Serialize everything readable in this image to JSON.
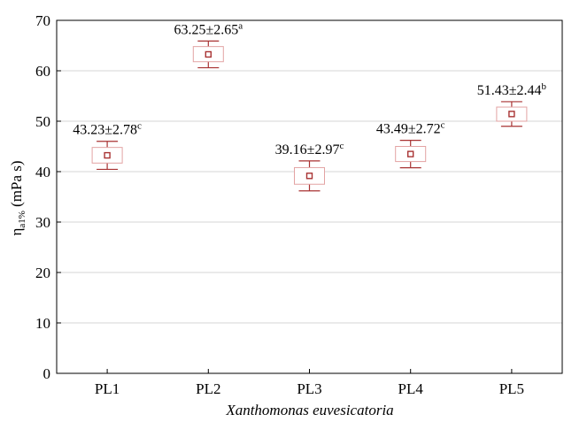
{
  "chart_data": {
    "type": "box",
    "ylabel_main": "η",
    "ylabel_sub": "a1%",
    "ylabel_unit": " (mPa s)",
    "xlabel": "Xanthomonas euvesicatoria",
    "ylim": [
      0,
      70
    ],
    "yticks": [
      "0",
      "10",
      "20",
      "30",
      "40",
      "50",
      "60",
      "70"
    ],
    "grid": true,
    "categories": [
      "PL1",
      "PL2",
      "PL3",
      "PL4",
      "PL5"
    ],
    "series": [
      {
        "points": [
          {
            "category": "PL1",
            "mean": 43.23,
            "sd": 2.78,
            "box_low": 41.7,
            "box_high": 44.8,
            "whisker_low": 40.45,
            "whisker_high": 46.01,
            "label_value": "43.23±2.78",
            "label_sup": "c"
          },
          {
            "category": "PL2",
            "mean": 63.25,
            "sd": 2.65,
            "box_low": 61.8,
            "box_high": 64.8,
            "whisker_low": 60.6,
            "whisker_high": 65.9,
            "label_value": "63.25±2.65",
            "label_sup": "a"
          },
          {
            "category": "PL3",
            "mean": 39.16,
            "sd": 2.97,
            "box_low": 37.5,
            "box_high": 40.8,
            "whisker_low": 36.19,
            "whisker_high": 42.13,
            "label_value": "39.16±2.97",
            "label_sup": "c"
          },
          {
            "category": "PL4",
            "mean": 43.49,
            "sd": 2.72,
            "box_low": 42.0,
            "box_high": 45.0,
            "whisker_low": 40.77,
            "whisker_high": 46.21,
            "label_value": "43.49±2.72",
            "label_sup": "c"
          },
          {
            "category": "PL5",
            "mean": 51.43,
            "sd": 2.44,
            "box_low": 50.0,
            "box_high": 52.8,
            "whisker_low": 48.99,
            "whisker_high": 53.87,
            "label_value": "51.43±2.44",
            "label_sup": "b"
          }
        ]
      }
    ],
    "colors": {
      "box_edge": "#e3a3a3",
      "whisker": "#a83232",
      "mean_marker": "#a83232",
      "grid": "#d6d6d6",
      "axis": "#000000"
    }
  }
}
